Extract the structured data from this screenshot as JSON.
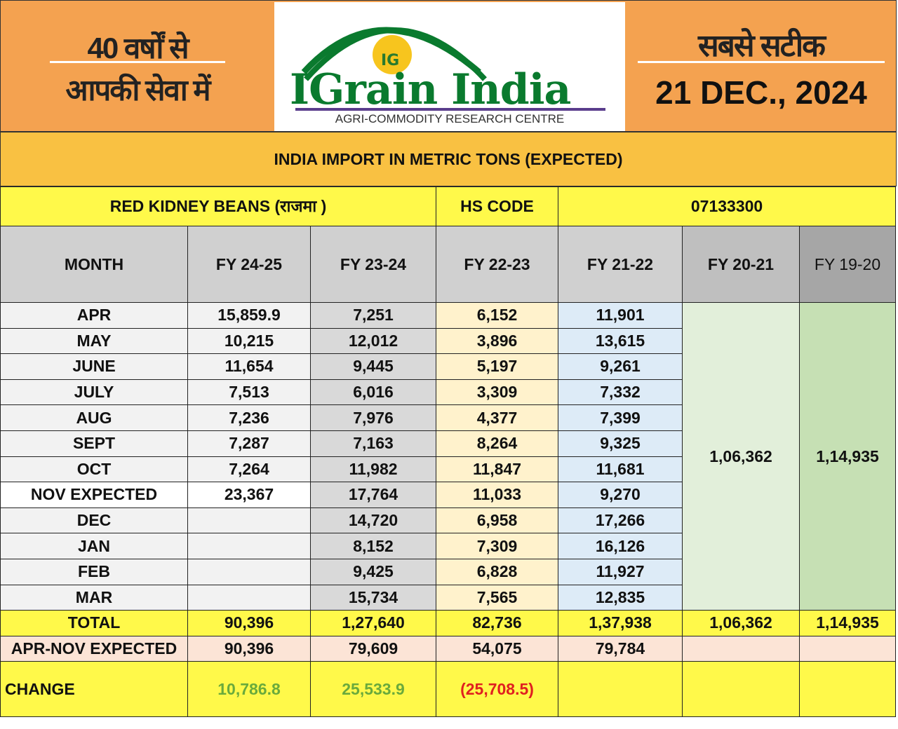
{
  "header": {
    "left_line1": "40 वर्षों से",
    "left_line2": "आपकी सेवा में",
    "logo_brand": "IGrain India",
    "logo_mark": "IG",
    "logo_subtitle": "AGRI-COMMODITY RESEARCH CENTRE",
    "right_line1": "सबसे सटीक",
    "date": "21 DEC., 2024"
  },
  "title": "INDIA IMPORT IN METRIC TONS (EXPECTED)",
  "commodity": "RED KIDNEY BEANS  (राजमा )",
  "hs_label": "HS CODE",
  "hs_code": "07133300",
  "columns": [
    "MONTH",
    "FY 24-25",
    "FY 23-24",
    "FY 22-23",
    "FY 21-22",
    "FY 20-21",
    "FY 19-20"
  ],
  "rows": [
    {
      "month": "APR",
      "v": [
        "15,859.9",
        "7,251",
        "6,152",
        "11,901"
      ]
    },
    {
      "month": "MAY",
      "v": [
        "10,215",
        "12,012",
        "3,896",
        "13,615"
      ]
    },
    {
      "month": "JUNE",
      "v": [
        "11,654",
        "9,445",
        "5,197",
        "9,261"
      ]
    },
    {
      "month": "JULY",
      "v": [
        "7,513",
        "6,016",
        "3,309",
        "7,332"
      ]
    },
    {
      "month": "AUG",
      "v": [
        "7,236",
        "7,976",
        "4,377",
        "7,399"
      ]
    },
    {
      "month": "SEPT",
      "v": [
        "7,287",
        "7,163",
        "8,264",
        "9,325"
      ]
    },
    {
      "month": "OCT",
      "v": [
        "7,264",
        "11,982",
        "11,847",
        "11,681"
      ]
    },
    {
      "month": "NOV EXPECTED",
      "v": [
        "23,367",
        "17,764",
        "11,033",
        "9,270"
      ]
    },
    {
      "month": "DEC",
      "v": [
        "",
        "14,720",
        "6,958",
        "17,266"
      ]
    },
    {
      "month": "JAN",
      "v": [
        "",
        "8,152",
        "7,309",
        "16,126"
      ]
    },
    {
      "month": "FEB",
      "v": [
        "",
        "9,425",
        "6,828",
        "11,927"
      ]
    },
    {
      "month": "MAR",
      "v": [
        "",
        "15,734",
        "7,565",
        "12,835"
      ]
    }
  ],
  "fy2021_annual": "1,06,362",
  "fy1920_annual": "1,14,935",
  "total": {
    "label": "TOTAL",
    "v": [
      "90,396",
      "1,27,640",
      "82,736",
      "1,37,938",
      "1,06,362",
      "1,14,935"
    ]
  },
  "aprnov": {
    "label": "APR-NOV EXPECTED",
    "v": [
      "90,396",
      "79,609",
      "54,075",
      "79,784",
      "",
      ""
    ]
  },
  "change": {
    "label": "CHANGE",
    "v": [
      "10,786.8",
      "25,533.9",
      "(25,708.5)"
    ]
  },
  "colors": {
    "orange": "#f4a250",
    "gold": "#f9c142",
    "yellow": "#fff94a",
    "green_text": "#6aaa3c",
    "red_text": "#e02020"
  }
}
